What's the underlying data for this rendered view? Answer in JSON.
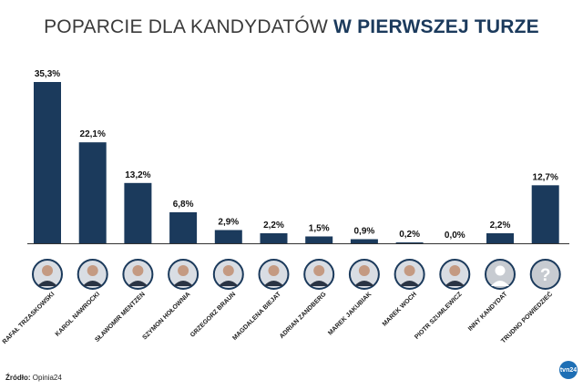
{
  "header": {
    "title_light": "POPARCIE DLA KANDYDATÓW",
    "title_bold": "W PIERWSZEJ TURZE"
  },
  "footer": {
    "source_label": "Źródło:",
    "source_value": "Opinia24",
    "logo_text": "tvn24"
  },
  "colors": {
    "bar": "#1b3a5c",
    "title_bold": "#1b3a5c",
    "axis": "#333333",
    "avatar_border": "#1b3a5c"
  },
  "chart_data": {
    "type": "bar",
    "title": "POPARCIE DLA KANDYDATÓW W PIERWSZEJ TURZE",
    "categories": [
      "RAFAŁ TRZASKOWSKI",
      "KAROL NAWROCKI",
      "SŁAWOMIR MENTZEN",
      "SZYMON HOŁOWNIA",
      "GRZEGORZ BRAUN",
      "MAGDALENA BIEJAT",
      "ADRIAN ZANDBERG",
      "MAREK JAKUBIAK",
      "MAREK WOCH",
      "PIOTR SZUMLEWICZ",
      "INNY KANDYDAT",
      "TRUDNO POWIEDZIEĆ"
    ],
    "values": [
      35.3,
      22.1,
      13.2,
      6.8,
      2.9,
      2.2,
      1.5,
      0.9,
      0.2,
      0.0,
      2.2,
      12.7
    ],
    "value_labels": [
      "35,3%",
      "22,1%",
      "13,2%",
      "6,8%",
      "2,9%",
      "2,2%",
      "1,5%",
      "0,9%",
      "0,2%",
      "0,0%",
      "2,2%",
      "12,7%"
    ],
    "avatar_icons": [
      "portrait-icon",
      "portrait-icon",
      "portrait-icon",
      "portrait-icon",
      "portrait-icon",
      "portrait-icon",
      "portrait-icon",
      "portrait-icon",
      "portrait-icon",
      "portrait-icon",
      "generic-person-icon",
      "question-mark-icon"
    ],
    "ylim": [
      0,
      35.3
    ],
    "grid": false,
    "legend": "none"
  }
}
